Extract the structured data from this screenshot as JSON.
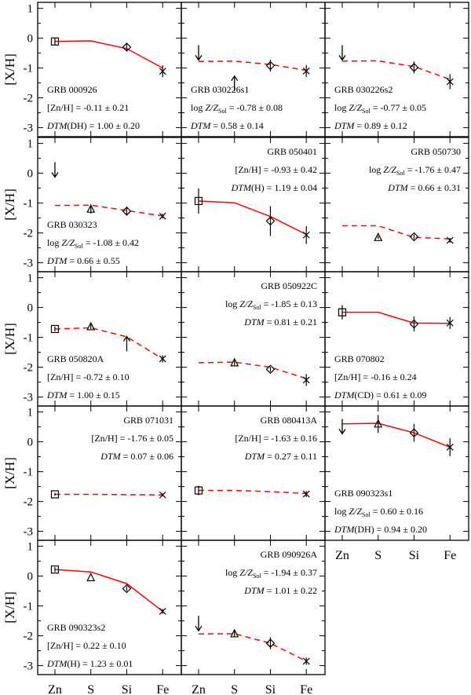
{
  "figure": {
    "y_axis_label": "[X/H]",
    "x_categories": [
      "Zn",
      "S",
      "Si",
      "Fe"
    ],
    "y_ticks": [
      1,
      0,
      -1,
      -2,
      -3
    ],
    "colors": {
      "model_line": "#ff0000",
      "markers": "#000000",
      "frame": "#000000"
    }
  },
  "chart_data": [
    {
      "type": "line",
      "title": "GRB 000926",
      "ylim": [
        -3.3,
        1.2
      ],
      "label_lines": [
        "[Zn/H] = -0.11 ± 0.21",
        "DTM(DH) = 1.00 ± 0.20"
      ],
      "label_position": "bottom-left",
      "model_style": "solid",
      "model_curve": [
        -0.11,
        -0.09,
        -0.35,
        -1.0
      ],
      "points": [
        {
          "element": "Zn",
          "value": -0.11,
          "err": 0.12,
          "kind": "measured"
        },
        {
          "element": "Si",
          "value": -0.3,
          "err": 0.12,
          "kind": "measured"
        },
        {
          "element": "Fe",
          "value": -1.11,
          "err": 0.2,
          "kind": "measured"
        }
      ]
    },
    {
      "type": "line",
      "title": "GRB 030226s1",
      "ylim": [
        -3.3,
        1.2
      ],
      "label_lines": [
        "log Z/Z_Sol = -0.78 ± 0.08",
        "DTM = 0.58 ± 0.14"
      ],
      "label_position": "bottom-left",
      "model_style": "dashed",
      "model_curve": [
        -0.78,
        -0.77,
        -0.88,
        -1.08
      ],
      "points": [
        {
          "element": "Zn",
          "value": -0.6,
          "kind": "upper_limit"
        },
        {
          "element": "S",
          "value": -1.4,
          "kind": "lower_limit"
        },
        {
          "element": "Si",
          "value": -0.92,
          "err": 0.2,
          "kind": "measured"
        },
        {
          "element": "Fe",
          "value": -1.1,
          "err": 0.2,
          "kind": "measured"
        }
      ]
    },
    {
      "type": "line",
      "title": "GRB 030226s2",
      "ylim": [
        -3.3,
        1.2
      ],
      "label_lines": [
        "log Z/Z_Sol = -0.77 ± 0.05",
        "DTM = 0.89 ± 0.12"
      ],
      "label_position": "bottom-left",
      "model_style": "dashed",
      "model_curve": [
        -0.77,
        -0.76,
        -0.95,
        -1.38
      ],
      "points": [
        {
          "element": "Zn",
          "value": -0.6,
          "kind": "upper_limit"
        },
        {
          "element": "Si",
          "value": -0.98,
          "err": 0.2,
          "kind": "measured"
        },
        {
          "element": "Fe",
          "value": -1.46,
          "err": 0.25,
          "kind": "measured"
        }
      ]
    },
    {
      "type": "line",
      "title": "GRB 030323",
      "ylim": [
        -3.3,
        1.2
      ],
      "label_lines": [
        "log Z/Z_Sol = -1.08 ± 0.42",
        "DTM = 0.66 ± 0.55"
      ],
      "label_position": "bottom-left",
      "model_style": "dashed",
      "model_curve": [
        -1.08,
        -1.07,
        -1.25,
        -1.43
      ],
      "points": [
        {
          "element": "Zn",
          "value": 0.0,
          "kind": "upper_limit"
        },
        {
          "element": "S",
          "value": -1.2,
          "err": 0.15,
          "kind": "measured"
        },
        {
          "element": "Si",
          "value": -1.27,
          "err": 0.15,
          "kind": "measured"
        },
        {
          "element": "Fe",
          "value": -1.44,
          "err": 0.08,
          "kind": "measured"
        }
      ]
    },
    {
      "type": "line",
      "title": "GRB 050401",
      "ylim": [
        -3.3,
        1.2
      ],
      "label_lines": [
        "[Zn/H] = -0.93 ± 0.42",
        "DTM(H) = 1.19 ± 0.04"
      ],
      "label_position": "top-right",
      "model_style": "solid",
      "model_curve": [
        -0.93,
        -0.99,
        -1.45,
        -2.05
      ],
      "points": [
        {
          "element": "Zn",
          "value": -0.93,
          "err": 0.42,
          "kind": "measured"
        },
        {
          "element": "Si",
          "value": -1.6,
          "err": 0.5,
          "kind": "measured"
        },
        {
          "element": "Fe",
          "value": -2.07,
          "err": 0.3,
          "kind": "measured"
        }
      ]
    },
    {
      "type": "line",
      "title": "GRB 050730",
      "ylim": [
        -3.3,
        1.2
      ],
      "label_lines": [
        "log Z/Z_Sol = -1.76 ± 0.47",
        "DTM = 0.66 ± 0.31"
      ],
      "label_position": "top-right",
      "model_style": "dashed",
      "model_curve": [
        -1.76,
        -1.76,
        -2.15,
        -2.2
      ],
      "points": [
        {
          "element": "S",
          "value": -2.15,
          "err": 0.05,
          "kind": "measured"
        },
        {
          "element": "Si",
          "value": -2.13,
          "err": 0.08,
          "kind": "measured"
        },
        {
          "element": "Fe",
          "value": -2.25,
          "err": 0.08,
          "kind": "measured"
        }
      ]
    },
    {
      "type": "line",
      "title": "GRB 050820A",
      "ylim": [
        -3.3,
        1.2
      ],
      "label_lines": [
        "[Zn/H] = -0.72 ± 0.10",
        "DTM = 1.00 ± 0.15"
      ],
      "label_position": "bottom-left",
      "model_style": "dashed",
      "model_curve": [
        -0.72,
        -0.68,
        -0.98,
        -1.72
      ],
      "points": [
        {
          "element": "Zn",
          "value": -0.72,
          "err": 0.08,
          "kind": "measured"
        },
        {
          "element": "S",
          "value": -0.64,
          "err": 0.08,
          "kind": "measured"
        },
        {
          "element": "Si",
          "value": -1.1,
          "kind": "lower_limit"
        },
        {
          "element": "Fe",
          "value": -1.72,
          "err": 0.12,
          "kind": "measured"
        }
      ]
    },
    {
      "type": "line",
      "title": "GRB 050922C",
      "ylim": [
        -3.3,
        1.2
      ],
      "label_lines": [
        "log Z/Z_Sol = -1.85 ± 0.13",
        "DTM = 0.81 ± 0.21"
      ],
      "label_position": "top-right",
      "model_style": "dashed",
      "model_curve": [
        -1.85,
        -1.83,
        -2.0,
        -2.38
      ],
      "points": [
        {
          "element": "S",
          "value": -1.85,
          "err": 0.08,
          "kind": "measured"
        },
        {
          "element": "Si",
          "value": -2.07,
          "err": 0.08,
          "kind": "measured"
        },
        {
          "element": "Fe",
          "value": -2.43,
          "err": 0.2,
          "kind": "measured"
        }
      ]
    },
    {
      "type": "line",
      "title": "GRB 070802",
      "ylim": [
        -3.3,
        1.2
      ],
      "label_lines": [
        "[Zn/H] = -0.16 ± 0.24",
        "DTM(CD) = 0.61 ± 0.09"
      ],
      "label_position": "bottom-left",
      "model_style": "solid",
      "model_curve": [
        -0.16,
        -0.16,
        -0.52,
        -0.53
      ],
      "points": [
        {
          "element": "Zn",
          "value": -0.16,
          "err": 0.24,
          "kind": "measured"
        },
        {
          "element": "Si",
          "value": -0.55,
          "err": 0.25,
          "kind": "measured"
        },
        {
          "element": "Fe",
          "value": -0.52,
          "err": 0.2,
          "kind": "measured"
        }
      ]
    },
    {
      "type": "line",
      "title": "GRB 071031",
      "ylim": [
        -3.3,
        1.2
      ],
      "label_lines": [
        "[Zn/H] = -1.76 ± 0.05",
        "DTM = 0.07 ± 0.06"
      ],
      "label_position": "top-right",
      "model_style": "dashed",
      "model_curve": [
        -1.76,
        -1.76,
        -1.77,
        -1.78
      ],
      "points": [
        {
          "element": "Zn",
          "value": -1.76,
          "err": 0.05,
          "kind": "measured"
        },
        {
          "element": "Fe",
          "value": -1.78,
          "err": 0.05,
          "kind": "measured"
        }
      ]
    },
    {
      "type": "line",
      "title": "GRB 080413A",
      "ylim": [
        -3.3,
        1.2
      ],
      "label_lines": [
        "[Zn/H] = -1.63 ± 0.16",
        "DTM = 0.27 ± 0.11"
      ],
      "label_position": "top-right",
      "model_style": "dashed",
      "model_curve": [
        -1.63,
        -1.63,
        -1.67,
        -1.73
      ],
      "points": [
        {
          "element": "Zn",
          "value": -1.63,
          "err": 0.16,
          "kind": "measured"
        },
        {
          "element": "Fe",
          "value": -1.75,
          "err": 0.1,
          "kind": "measured"
        }
      ]
    },
    {
      "type": "line",
      "title": "GRB 090323s1",
      "ylim": [
        -3.3,
        1.2
      ],
      "label_lines": [
        "log Z/Z_Sol = 0.60 ± 0.16",
        "DTM(DH) = 0.94 ± 0.20"
      ],
      "label_position": "bottom-left",
      "model_style": "solid",
      "model_curve": [
        0.6,
        0.62,
        0.3,
        -0.18
      ],
      "points": [
        {
          "element": "Zn",
          "value": 0.4,
          "kind": "upper_limit"
        },
        {
          "element": "S",
          "value": 0.6,
          "err": 0.3,
          "kind": "measured"
        },
        {
          "element": "Si",
          "value": 0.3,
          "err": 0.3,
          "kind": "measured"
        },
        {
          "element": "Fe",
          "value": -0.18,
          "err": 0.3,
          "kind": "measured"
        }
      ]
    },
    {
      "type": "line",
      "title": "GRB 090323s2",
      "ylim": [
        -3.3,
        1.2
      ],
      "label_lines": [
        "[Zn/H] = 0.22 ± 0.10",
        "DTM(H) = 1.23 ± 0.01"
      ],
      "label_position": "bottom-left",
      "model_style": "solid",
      "model_curve": [
        0.22,
        0.14,
        -0.25,
        -1.18
      ],
      "points": [
        {
          "element": "Zn",
          "value": 0.22,
          "err": 0.08,
          "kind": "measured"
        },
        {
          "element": "S",
          "value": -0.05,
          "kind": "measured"
        },
        {
          "element": "Si",
          "value": -0.42,
          "err": 0.08,
          "kind": "measured"
        },
        {
          "element": "Fe",
          "value": -1.18,
          "err": 0.08,
          "kind": "measured"
        }
      ]
    },
    {
      "type": "line",
      "title": "GRB 090926A",
      "ylim": [
        -3.3,
        1.2
      ],
      "label_lines": [
        "log Z/Z_Sol = -1.94 ± 0.37",
        "DTM = 1.01 ± 0.22"
      ],
      "label_position": "top-right",
      "model_style": "dashed",
      "model_curve": [
        -1.94,
        -1.93,
        -2.25,
        -2.85
      ],
      "points": [
        {
          "element": "Zn",
          "value": -1.7,
          "kind": "upper_limit"
        },
        {
          "element": "S",
          "value": -1.93,
          "err": 0.12,
          "kind": "measured"
        },
        {
          "element": "Si",
          "value": -2.25,
          "err": 0.2,
          "kind": "measured"
        },
        {
          "element": "Fe",
          "value": -2.85,
          "err": 0.12,
          "kind": "measured"
        }
      ]
    }
  ]
}
